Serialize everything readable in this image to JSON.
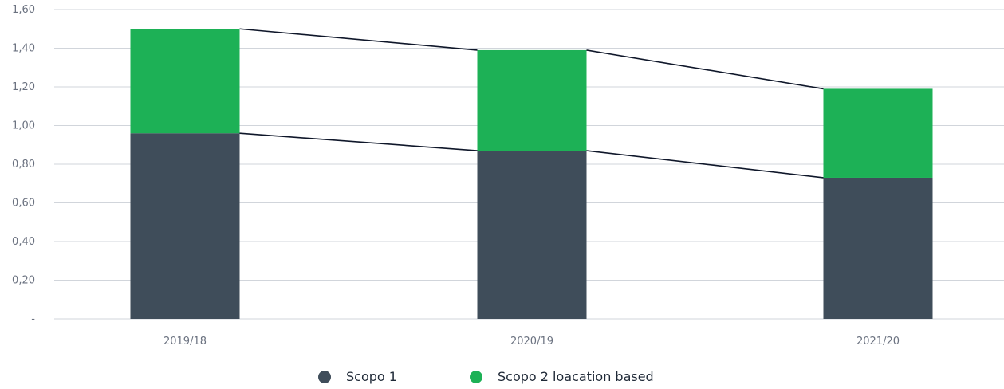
{
  "chart_data": {
    "type": "bar",
    "stacked": true,
    "categories": [
      "2019/18",
      "2020/19",
      "2021/20"
    ],
    "series": [
      {
        "name": "Scopo 1",
        "color": "#3f4d5a",
        "values": [
          0.96,
          0.87,
          0.73
        ]
      },
      {
        "name": "Scopo 2 loacation based",
        "color": "#1db156",
        "values": [
          0.54,
          0.52,
          0.46
        ]
      }
    ],
    "connector_lines": true,
    "connector_color": "#0f172a",
    "ylim": [
      0,
      1.6
    ],
    "yticks": [
      0,
      0.2,
      0.4,
      0.6,
      0.8,
      1.0,
      1.2,
      1.4,
      1.6
    ],
    "ytick_labels": [
      "-",
      "0,20",
      "0,40",
      "0,60",
      "0,80",
      "1,00",
      "1,20",
      "1,40",
      "1,60"
    ],
    "grid": true,
    "grid_color": "#d1d5db",
    "legend_position": "bottom-center",
    "title": "",
    "xlabel": "",
    "ylabel": ""
  }
}
